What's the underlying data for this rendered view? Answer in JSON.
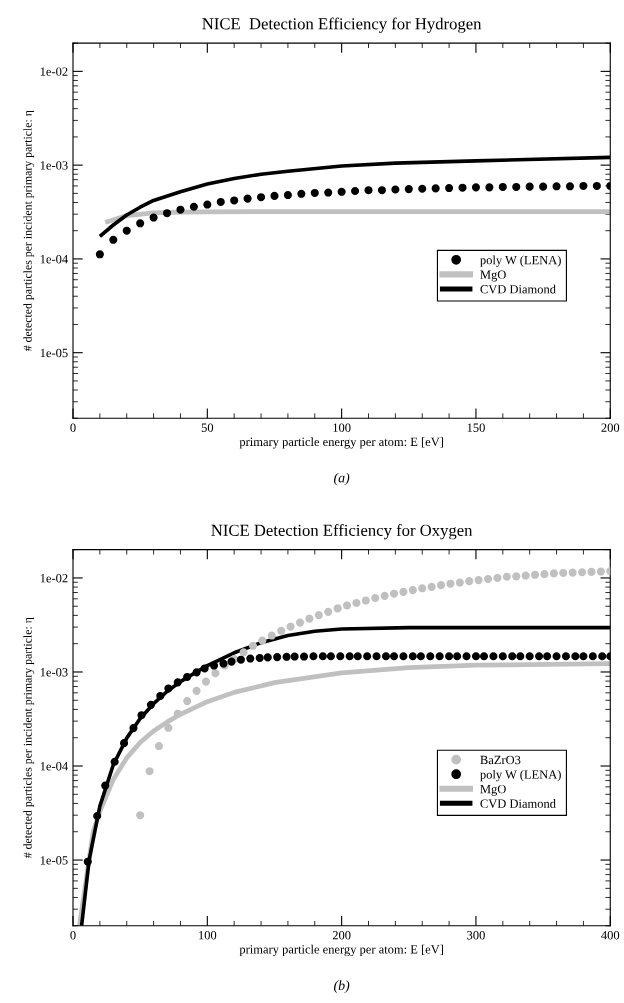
{
  "chart_data": [
    {
      "type": "line",
      "title": "NICE  Detection Efficiency for Hydrogen",
      "xlabel": "primary particle energy per atom: E [eV]",
      "ylabel": "# detected particles per incident primary particle: η",
      "annotations": [
        "(a)"
      ],
      "xlim": [
        0,
        200
      ],
      "xticks": [
        0,
        50,
        100,
        150,
        200
      ],
      "ylim": [
        2e-06,
        0.02
      ],
      "yticks": [
        {
          "value": 0.01,
          "label": "1e-02"
        },
        {
          "value": 0.001,
          "label": "1e-03"
        },
        {
          "value": 0.0001,
          "label": "1e-04"
        },
        {
          "value": 1e-05,
          "label": "1e-05"
        }
      ],
      "log": "y",
      "grid": false,
      "legend": "right",
      "series": [
        {
          "name": "poly W (LENA)",
          "type": "scatter",
          "marker": "circle",
          "color": "#000000",
          "x": [
            10,
            15,
            20,
            25,
            30,
            35,
            40,
            45,
            50,
            55,
            60,
            65,
            70,
            75,
            80,
            85,
            90,
            95,
            100,
            105,
            110,
            115,
            120,
            125,
            130,
            135,
            140,
            145,
            150,
            155,
            160,
            165,
            170,
            175,
            180,
            185,
            190,
            195,
            200
          ],
          "values": [
            0.000112,
            0.00016,
            0.0002,
            0.00024,
            0.000276,
            0.000307,
            0.000335,
            0.00036,
            0.00038,
            0.000405,
            0.00042,
            0.00044,
            0.000455,
            0.00047,
            0.00048,
            0.000495,
            0.000505,
            0.00051,
            0.00052,
            0.00053,
            0.00054,
            0.00054,
            0.00055,
            0.000555,
            0.00056,
            0.000565,
            0.00057,
            0.000575,
            0.00058,
            0.00058,
            0.000585,
            0.000585,
            0.00059,
            0.00059,
            0.000595,
            0.000595,
            0.0006,
            0.0006,
            0.0006
          ]
        },
        {
          "name": "MgO",
          "type": "line",
          "marker": "none",
          "color": "#c0c0c0",
          "x": [
            12,
            20,
            30,
            40,
            50,
            100,
            150,
            200
          ],
          "values": [
            0.000245,
            0.00029,
            0.00031,
            0.000315,
            0.000318,
            0.00032,
            0.00032,
            0.00032
          ]
        },
        {
          "name": "CVD Diamond",
          "type": "line",
          "marker": "none",
          "color": "#000000",
          "x": [
            10,
            15,
            20,
            25,
            30,
            40,
            50,
            60,
            70,
            80,
            100,
            120,
            150,
            200
          ],
          "values": [
            0.000174,
            0.00023,
            0.000294,
            0.000356,
            0.00042,
            0.00052,
            0.00063,
            0.00072,
            0.0008,
            0.00086,
            0.00098,
            0.00105,
            0.00111,
            0.00121
          ]
        }
      ]
    },
    {
      "type": "line",
      "title": "NICE Detection Efficiency for Oxygen",
      "xlabel": "primary particle energy per atom: E [eV]",
      "ylabel": "# detected particles per incident primary particle: η",
      "annotations": [
        "(b)"
      ],
      "xlim": [
        0,
        400
      ],
      "xticks": [
        0,
        100,
        200,
        300,
        400
      ],
      "ylim": [
        2e-06,
        0.02
      ],
      "yticks": [
        {
          "value": 0.01,
          "label": "1e-02"
        },
        {
          "value": 0.001,
          "label": "1e-03"
        },
        {
          "value": 0.0001,
          "label": "1e-04"
        },
        {
          "value": 1e-05,
          "label": "1e-05"
        }
      ],
      "log": "y",
      "grid": false,
      "legend": "right",
      "series": [
        {
          "name": "BaZrO3",
          "type": "scatter",
          "marker": "circle",
          "color": "#c0c0c0",
          "x": [
            50,
            57,
            64,
            71,
            78,
            85,
            92,
            99,
            106,
            113,
            120,
            127,
            134,
            141,
            148,
            155,
            162,
            169,
            176,
            183,
            190,
            197,
            204,
            211,
            218,
            225,
            232,
            239,
            246,
            253,
            260,
            267,
            274,
            281,
            288,
            295,
            302,
            309,
            316,
            323,
            330,
            337,
            344,
            351,
            358,
            365,
            372,
            379,
            386,
            393,
            400
          ],
          "values": [
            3e-05,
            8.8e-05,
            0.000163,
            0.000255,
            0.00036,
            0.00049,
            0.00063,
            0.00079,
            0.00097,
            0.00117,
            0.00137,
            0.00162,
            0.0019,
            0.00216,
            0.00244,
            0.00274,
            0.00304,
            0.00335,
            0.00369,
            0.00403,
            0.00436,
            0.00475,
            0.0051,
            0.00542,
            0.00575,
            0.00612,
            0.00645,
            0.0068,
            0.00711,
            0.00743,
            0.00776,
            0.00803,
            0.00839,
            0.00869,
            0.00893,
            0.00925,
            0.00949,
            0.00975,
            0.01,
            0.0103,
            0.0104,
            0.0106,
            0.0108,
            0.011,
            0.0112,
            0.0113,
            0.0114,
            0.0115,
            0.0116,
            0.0117,
            0.0118
          ]
        },
        {
          "name": "poly W (LENA)",
          "type": "scatter",
          "marker": "circle",
          "color": "#000000",
          "x": [
            11,
            18,
            24,
            31,
            38,
            45,
            51,
            58,
            65,
            71,
            78,
            85,
            92,
            98,
            105,
            112,
            118,
            125,
            132,
            139,
            145,
            152,
            159,
            165,
            172,
            179,
            186,
            192,
            199,
            206,
            212,
            219,
            226,
            233,
            239,
            246,
            253,
            259,
            266,
            273,
            280,
            286,
            293,
            300,
            306,
            313,
            320,
            327,
            333,
            340,
            347,
            353,
            360,
            367,
            374,
            380,
            387,
            394,
            400
          ],
          "values": [
            9.6e-06,
            2.94e-05,
            6.2e-05,
            0.000111,
            0.000175,
            0.000253,
            0.000347,
            0.000447,
            0.000556,
            0.000668,
            0.000776,
            0.000885,
            0.00099,
            0.00109,
            0.00117,
            0.00123,
            0.00129,
            0.00135,
            0.00139,
            0.00141,
            0.00143,
            0.00144,
            0.00145,
            0.00146,
            0.00146,
            0.00147,
            0.00147,
            0.00147,
            0.00147,
            0.00147,
            0.00147,
            0.00147,
            0.00147,
            0.00147,
            0.00147,
            0.00147,
            0.00147,
            0.00147,
            0.00147,
            0.00147,
            0.00147,
            0.00147,
            0.00147,
            0.00147,
            0.00147,
            0.00147,
            0.00147,
            0.00147,
            0.00147,
            0.00147,
            0.00147,
            0.00147,
            0.00147,
            0.00147,
            0.00147,
            0.00147,
            0.00147,
            0.00147,
            0.00147
          ]
        },
        {
          "name": "MgO",
          "type": "line",
          "marker": "none",
          "color": "#c0c0c0",
          "x": [
            4.8,
            15,
            20,
            30,
            40,
            50,
            60,
            70,
            80,
            100,
            120,
            150,
            200,
            250,
            300,
            400
          ],
          "values": [
            2e-06,
            2e-05,
            3.3e-05,
            7.2e-05,
            0.000122,
            0.000178,
            0.000236,
            0.000293,
            0.000355,
            0.000483,
            0.000607,
            0.00077,
            0.00098,
            0.00111,
            0.00118,
            0.00123
          ]
        },
        {
          "name": "CVD Diamond",
          "type": "line",
          "marker": "none",
          "color": "#000000",
          "x": [
            6.4,
            12,
            20,
            30,
            40,
            50,
            60,
            70,
            80,
            100,
            120,
            140,
            160,
            180,
            200,
            250,
            300,
            400
          ],
          "values": [
            2e-06,
            1e-05,
            3.75e-05,
            0.000103,
            0.000198,
            0.00032,
            0.00046,
            0.00062,
            0.00079,
            0.00117,
            0.0016,
            0.00205,
            0.00244,
            0.00271,
            0.00286,
            0.00296,
            0.00296,
            0.00296
          ]
        }
      ]
    }
  ]
}
